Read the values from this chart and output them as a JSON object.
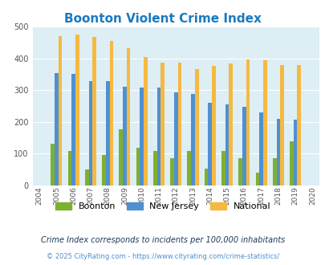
{
  "title": "Boonton Violent Crime Index",
  "years": [
    2004,
    2005,
    2006,
    2007,
    2008,
    2009,
    2010,
    2011,
    2012,
    2013,
    2014,
    2015,
    2016,
    2017,
    2018,
    2019,
    2020
  ],
  "boonton": [
    null,
    132,
    108,
    50,
    96,
    178,
    118,
    108,
    86,
    108,
    52,
    108,
    86,
    40,
    86,
    138,
    null
  ],
  "new_jersey": [
    null,
    354,
    350,
    328,
    328,
    311,
    309,
    309,
    292,
    288,
    260,
    254,
    247,
    231,
    210,
    207,
    null
  ],
  "national": [
    null,
    469,
    474,
    467,
    455,
    432,
    405,
    387,
    387,
    367,
    376,
    383,
    397,
    394,
    380,
    379,
    null
  ],
  "boonton_color": "#7db030",
  "nj_color": "#4f90d0",
  "national_color": "#f5b942",
  "bg_color": "#ddeef5",
  "ylim": [
    0,
    500
  ],
  "yticks": [
    0,
    100,
    200,
    300,
    400,
    500
  ],
  "subtitle": "Crime Index corresponds to incidents per 100,000 inhabitants",
  "footer": "© 2025 CityRating.com - https://www.cityrating.com/crime-statistics/",
  "title_color": "#1a7abf",
  "subtitle_color": "#1a3a5c",
  "footer_color": "#4f90d0"
}
